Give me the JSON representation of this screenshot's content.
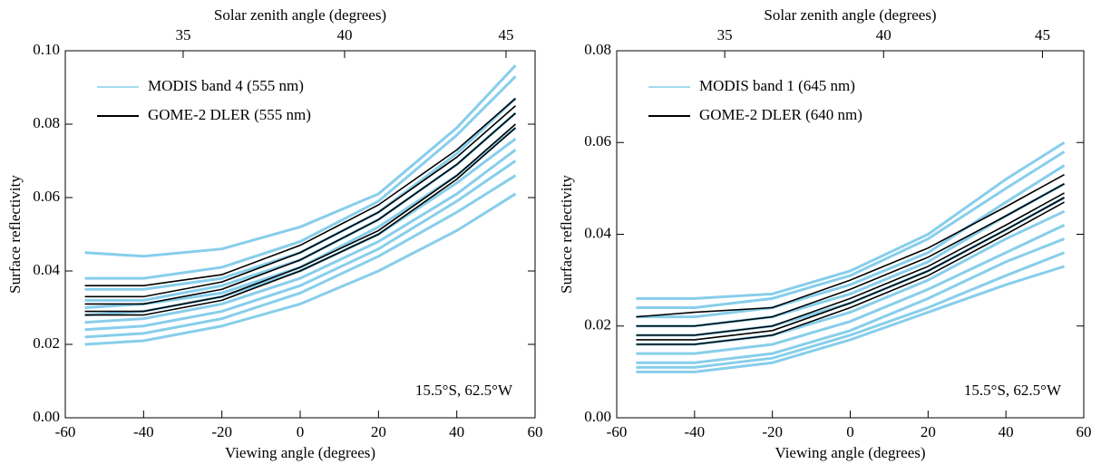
{
  "chart_data": [
    {
      "type": "line",
      "xlabel": "Viewing angle (degrees)",
      "ylabel": "Surface reflectivity",
      "x2label": "Solar zenith angle (degrees)",
      "annotation": "15.5°S, 62.5°W",
      "legend": "upper left",
      "xlim": [
        -60,
        60
      ],
      "xticks": [
        -60,
        -40,
        -20,
        0,
        20,
        40,
        60
      ],
      "x2lim": [
        31.35,
        45.9
      ],
      "x2ticks": [
        35,
        40,
        45
      ],
      "ylim": [
        0,
        0.1
      ],
      "yticks": [
        {
          "value": 0,
          "label": "0.00"
        },
        0.02,
        0.04,
        0.06,
        0.08,
        {
          "value": 0.1,
          "label": "0.10"
        }
      ],
      "x": [
        -55,
        -40,
        -20,
        0,
        20,
        40,
        55
      ],
      "series": [
        {
          "name": "MODIS band 4 (555 nm)",
          "color": "#87ceeb",
          "lines": [
            [
              0.02,
              0.021,
              0.025,
              0.031,
              0.04,
              0.051,
              0.061
            ],
            [
              0.022,
              0.023,
              0.027,
              0.034,
              0.044,
              0.056,
              0.066
            ],
            [
              0.024,
              0.025,
              0.029,
              0.036,
              0.046,
              0.059,
              0.07
            ],
            [
              0.026,
              0.027,
              0.031,
              0.038,
              0.048,
              0.061,
              0.073
            ],
            [
              0.028,
              0.029,
              0.033,
              0.04,
              0.05,
              0.064,
              0.076
            ],
            [
              0.03,
              0.031,
              0.034,
              0.041,
              0.052,
              0.066,
              0.079
            ],
            [
              0.032,
              0.032,
              0.036,
              0.043,
              0.054,
              0.069,
              0.083
            ],
            [
              0.035,
              0.035,
              0.038,
              0.045,
              0.056,
              0.072,
              0.087
            ],
            [
              0.038,
              0.038,
              0.041,
              0.048,
              0.059,
              0.077,
              0.093
            ],
            [
              0.045,
              0.044,
              0.046,
              0.052,
              0.061,
              0.079,
              0.096
            ]
          ]
        },
        {
          "name": "GOME-2 DLER (555 nm)",
          "color": "#000000",
          "lines": [
            [
              0.028,
              0.028,
              0.032,
              0.04,
              0.05,
              0.065,
              0.079
            ],
            [
              0.029,
              0.029,
              0.033,
              0.041,
              0.051,
              0.066,
              0.08
            ],
            [
              0.031,
              0.031,
              0.035,
              0.043,
              0.054,
              0.069,
              0.083
            ],
            [
              0.033,
              0.033,
              0.037,
              0.045,
              0.056,
              0.071,
              0.085
            ],
            [
              0.036,
              0.036,
              0.039,
              0.047,
              0.058,
              0.073,
              0.087
            ]
          ]
        }
      ]
    },
    {
      "type": "line",
      "xlabel": "Viewing angle (degrees)",
      "ylabel": "Surface reflectivity",
      "x2label": "Solar zenith angle (degrees)",
      "annotation": "15.5°S, 62.5°W",
      "legend": "upper left",
      "xlim": [
        -60,
        60
      ],
      "xticks": [
        -60,
        -40,
        -20,
        0,
        20,
        40,
        60
      ],
      "x2lim": [
        31.6,
        46.3
      ],
      "x2ticks": [
        35,
        40,
        45
      ],
      "ylim": [
        0,
        0.08
      ],
      "yticks": [
        {
          "value": 0,
          "label": "0.00"
        },
        0.02,
        0.04,
        0.06,
        0.08
      ],
      "x": [
        -55,
        -40,
        -20,
        0,
        20,
        40,
        55
      ],
      "series": [
        {
          "name": "MODIS band 1 (645 nm)",
          "color": "#87ceeb",
          "lines": [
            [
              0.01,
              0.01,
              0.012,
              0.017,
              0.023,
              0.029,
              0.033
            ],
            [
              0.011,
              0.011,
              0.013,
              0.018,
              0.024,
              0.031,
              0.036
            ],
            [
              0.012,
              0.012,
              0.014,
              0.019,
              0.026,
              0.034,
              0.039
            ],
            [
              0.014,
              0.014,
              0.016,
              0.021,
              0.028,
              0.036,
              0.042
            ],
            [
              0.016,
              0.016,
              0.018,
              0.023,
              0.03,
              0.039,
              0.045
            ],
            [
              0.018,
              0.018,
              0.02,
              0.025,
              0.032,
              0.041,
              0.048
            ],
            [
              0.02,
              0.02,
              0.022,
              0.027,
              0.034,
              0.044,
              0.051
            ],
            [
              0.022,
              0.022,
              0.024,
              0.029,
              0.036,
              0.047,
              0.055
            ],
            [
              0.024,
              0.024,
              0.026,
              0.031,
              0.039,
              0.05,
              0.058
            ],
            [
              0.026,
              0.026,
              0.027,
              0.032,
              0.04,
              0.052,
              0.06
            ]
          ]
        },
        {
          "name": "GOME-2 DLER (640 nm)",
          "color": "#000000",
          "lines": [
            [
              0.016,
              0.016,
              0.018,
              0.024,
              0.031,
              0.04,
              0.047
            ],
            [
              0.017,
              0.017,
              0.019,
              0.025,
              0.032,
              0.041,
              0.048
            ],
            [
              0.018,
              0.018,
              0.02,
              0.026,
              0.033,
              0.042,
              0.049
            ],
            [
              0.02,
              0.02,
              0.022,
              0.028,
              0.035,
              0.044,
              0.051
            ],
            [
              0.022,
              0.023,
              0.024,
              0.03,
              0.037,
              0.046,
              0.053
            ]
          ]
        }
      ]
    }
  ]
}
